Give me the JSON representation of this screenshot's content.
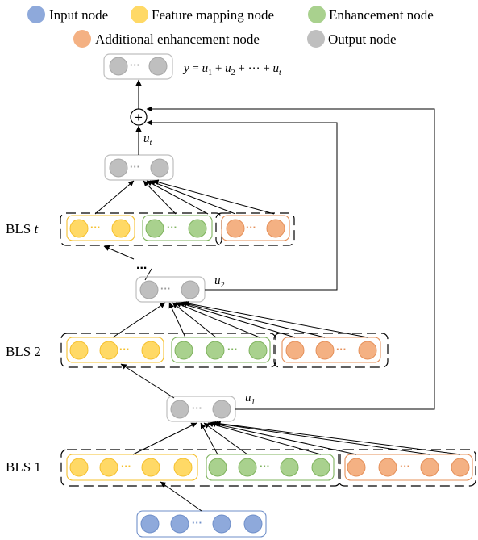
{
  "legend": {
    "input": "Input node",
    "feature": "Feature mapping node",
    "enhancement": "Enhancement node",
    "additional": "Additional enhancement node",
    "output": "Output node"
  },
  "labels": {
    "bls1": "BLS 1",
    "bls2": "BLS 2",
    "blst_prefix": "BLS",
    "blst_var": "t",
    "u": "u",
    "u1_sub": "1",
    "u2_sub": "2",
    "ut_sub": "t",
    "dots_vertical": "...",
    "plus": "+"
  },
  "equation": {
    "y": "y",
    "eq": " = ",
    "u": "u",
    "sub1": "1",
    "sub2": "2",
    "plus": " + ",
    "ellipsis": "⋯",
    "subt": "t"
  },
  "colors": {
    "input_fill": "#8EA9DB",
    "input_stroke": "#6F8FC9",
    "feature_fill": "#FFD966",
    "feature_stroke": "#F5C02E",
    "enhancement_fill": "#A9D18E",
    "enhancement_stroke": "#7FB35E",
    "additional_fill": "#F4B183",
    "additional_stroke": "#E5905A",
    "output_fill": "#BFBFBF",
    "output_stroke": "#A6A6A6"
  }
}
